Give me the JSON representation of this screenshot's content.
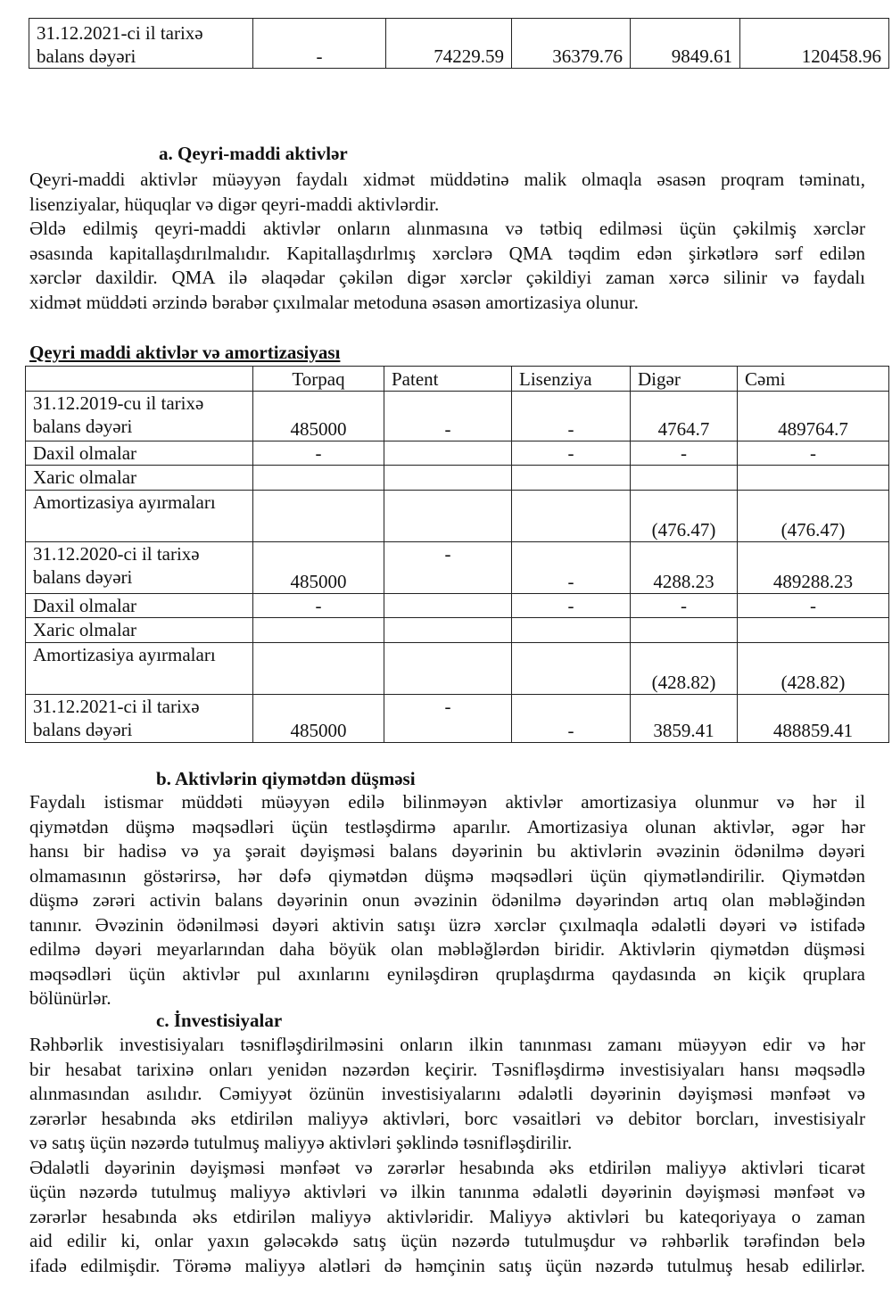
{
  "top_table": {
    "row": {
      "label": "31.12.2021-ci il tarixə balans dəyəri",
      "cells": [
        "-",
        "74229.59",
        "36379.76",
        "9849.61",
        "120458.96"
      ]
    }
  },
  "section_a": {
    "heading": "a.  Qeyri-maddi aktivlər",
    "lines": [
      "Qeyri-maddi aktivlər müəyyən faydalı xidmət müddətinə malik olmaqla əsasən proqram təminatı,",
      "lisenziyalar, hüquqlar və digər qeyri-maddi aktivlərdir.",
      "Əldə edilmiş qeyri-maddi aktivlər onların alınmasına və tətbiq edilməsi üçün çəkilmiş xərclər",
      "əsasında kapitallaşdırılmalıdır. Kapitallaşdırlmış xərclərə QMA təqdim edən şirkətlərə sərf edilən",
      "xərclər daxildir. QMA ilə əlaqədar çəkilən digər xərclər çəkildiyi zaman xərcə silinir və faydalı",
      "xidmət müddəti ərzində bərabər çıxılmalar metoduna əsasən amortizasiya olunur."
    ],
    "last_lines": [
      1,
      5
    ]
  },
  "intangibles_table": {
    "caption": "Qeyri maddi aktivlər və amortizasiyası",
    "headers": [
      "",
      "Torpaq",
      "Patent",
      "Lisenziya",
      "Digər",
      "Cəmi"
    ],
    "rows": [
      {
        "label": "31.12.2019-cu il tarixə balans dəyəri",
        "cells": [
          "485000",
          "-",
          "-",
          "4764.7",
          "489764.7"
        ]
      },
      {
        "label": "Daxil olmalar",
        "cells": [
          "-",
          "",
          "-",
          "-",
          "-"
        ]
      },
      {
        "label": "Xaric olmalar",
        "cells": [
          "",
          "",
          "",
          "",
          ""
        ]
      },
      {
        "label": "Amortizasiya ayırmaları",
        "cells": [
          "",
          "",
          "",
          "(476.47)",
          "(476.47)"
        ]
      },
      {
        "label": "31.12.2020-ci il tarixə balans dəyəri",
        "cells": [
          "485000",
          "-",
          "-",
          "4288.23",
          "489288.23"
        ]
      },
      {
        "label": "Daxil olmalar",
        "cells": [
          "-",
          "",
          "-",
          "-",
          "-"
        ]
      },
      {
        "label": "Xaric olmalar",
        "cells": [
          "",
          "",
          "",
          "",
          ""
        ]
      },
      {
        "label": "Amortizasiya ayırmaları",
        "cells": [
          "",
          "",
          "",
          "(428.82)",
          "(428.82)"
        ]
      },
      {
        "label": "31.12.2021-ci il tarixə balans dəyəri",
        "cells": [
          "485000",
          "-",
          "-",
          "3859.41",
          "488859.41"
        ]
      }
    ]
  },
  "section_b": {
    "heading": "b.  Aktivlərin qiymətdən düşməsi",
    "lines": [
      "Faydalı istismar müddəti müəyyən edilə bilinməyən aktivlər amortizasiya olunmur və hər il",
      "qiymətdən düşmə məqsədləri üçün testləşdirmə aparılır. Amortizasiya olunan aktivlər, əgər hər",
      "hansı bir hadisə və ya şərait dəyişməsi balans dəyərinin bu aktivlərin əvəzinin ödənilmə dəyəri",
      "olmamasının göstərirsə, hər dəfə qiymətdən düşmə məqsədləri üçün qiymətləndirilir. Qiymətdən",
      "düşmə zərəri activin balans dəyərinin onun əvəzinin ödənilmə dəyərindən artıq olan məbləğindən",
      "tanınır. Əvəzinin ödənilməsi dəyəri aktivin satışı üzrə xərclər çıxılmaqla ədalətli dəyəri və istifadə",
      "edilmə dəyəri meyarlarından daha böyük olan məbləğlərdən biridir. Aktivlərin qiymətdən düşməsi",
      "məqsədləri üçün aktivlər pul axınlarını eyniləşdirən qruplaşdırma qaydasında ən kiçik qruplara",
      "bölünürlər."
    ],
    "last_lines": [
      8
    ]
  },
  "section_c": {
    "heading": "c.  İnvestisiyalar",
    "lines": [
      "Rəhbərlik investisiyaları təsnifləşdirilməsini onların ilkin tanınması zamanı müəyyən edir və hər",
      "bir hesabat tarixinə onları yenidən nəzərdən keçirir. Təsnifləşdirmə investisiyaları hansı məqsədlə",
      "alınmasından asılıdır. Cəmiyyət özünün investisiyalarını ədalətli dəyərinin dəyişməsi mənfəət və",
      "zərərlər hesabında əks etdirilən maliyyə aktivləri, borc vəsaitləri və debitor borcları, investisiyalr",
      "və satış üçün nəzərdə tutulmuş maliyyə aktivləri şəklində təsnifləşdirilir.",
      " Ədalətli dəyərinin dəyişməsi mənfəət və zərərlər hesabında əks etdirilən maliyyə aktivləri ticarət",
      "üçün nəzərdə tutulmuş maliyyə aktivləri və ilkin tanınma ədalətli dəyərinin dəyişməsi mənfəət və",
      "zərərlər hesabında əks etdirilən maliyyə aktivləridir. Maliyyə aktivləri bu kateqoriyaya o zaman",
      "aid edilir ki, onlar yaxın gələcəkdə satış üçün nəzərdə tutulmuşdur və rəhbərlik tərəfindən belə",
      "ifadə edilmişdir. Törəmə maliyyə alətləri də həmçinin satış üçün nəzərdə tutulmuş hesab edilirlər."
    ],
    "last_lines": [
      4
    ]
  }
}
